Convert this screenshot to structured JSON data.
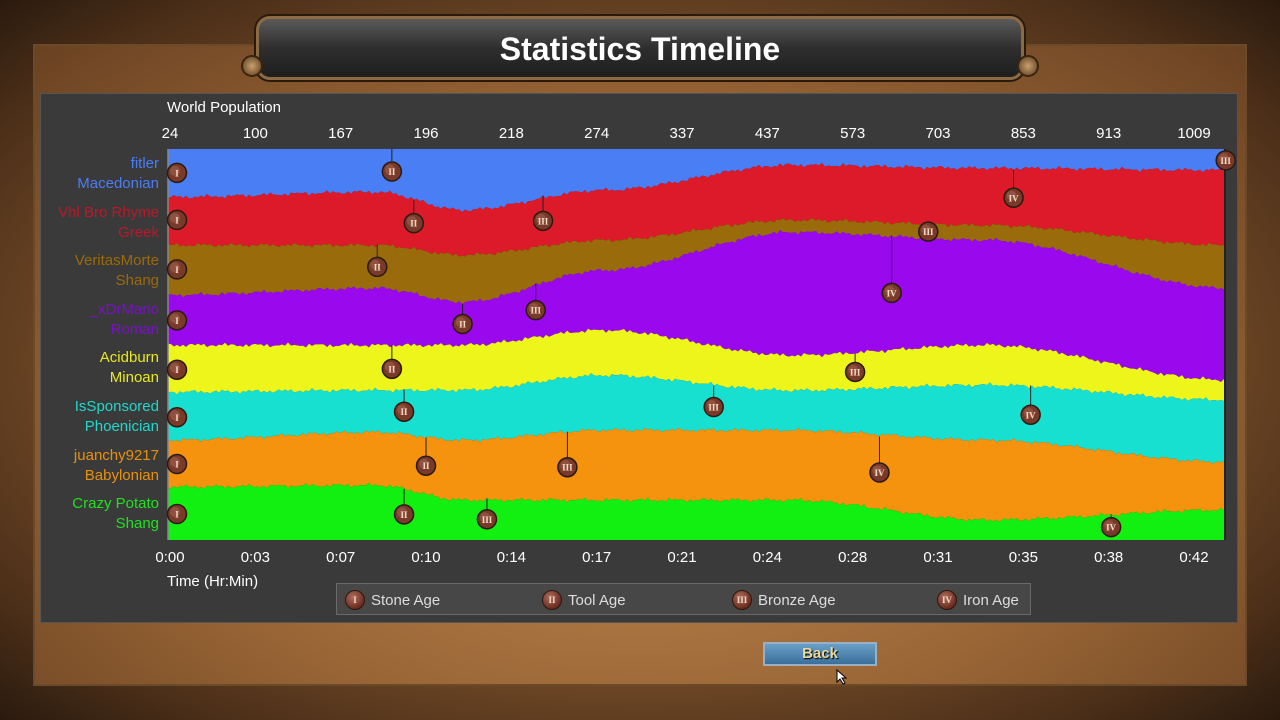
{
  "title": "Statistics Timeline",
  "back_label": "Back",
  "cursor": "arrow-cursor",
  "chart_data": {
    "type": "area",
    "subtype": "stacked-percentage-stream",
    "top_axis_label": "World Population",
    "top_ticks": [
      "24",
      "100",
      "167",
      "196",
      "218",
      "274",
      "337",
      "437",
      "573",
      "703",
      "853",
      "913",
      "1009"
    ],
    "xlabel": "Time (Hr:Min)",
    "x_ticks": [
      "0:00",
      "0:03",
      "0:07",
      "0:10",
      "0:14",
      "0:17",
      "0:21",
      "0:24",
      "0:28",
      "0:31",
      "0:35",
      "0:38",
      "0:42"
    ],
    "x_tick_minutes": [
      0,
      3.5,
      7,
      10.5,
      14,
      17.5,
      21,
      24.5,
      28,
      31.5,
      35,
      38.5,
      42
    ],
    "xlim_minutes": [
      0,
      43.3
    ],
    "sample_minutes": [
      0,
      8.5,
      12,
      17.8,
      25.5,
      33.5,
      43.3
    ],
    "series": [
      {
        "name": "fitler",
        "civ": "Macedonian",
        "color": "#4a7ef5",
        "text_color": "#4a7ef5",
        "share_pct": [
          12.3,
          11,
          15.6,
          10.5,
          4.1,
          4.9,
          5.4
        ],
        "ages": [
          {
            "age": 1,
            "t": 0
          },
          {
            "age": 2,
            "t": 9.1
          },
          {
            "age": 3,
            "t": 43.3
          }
        ]
      },
      {
        "name": "Vhl Bro Rhyme",
        "civ": "Greek",
        "color": "#dc1a2a",
        "text_color": "#c0162a",
        "share_pct": [
          12.3,
          13.6,
          11.5,
          12.8,
          14.1,
          14.6,
          19.2
        ],
        "ages": [
          {
            "age": 1,
            "t": 0
          },
          {
            "age": 2,
            "t": 10.0
          },
          {
            "age": 3,
            "t": 15.3
          },
          {
            "age": 4,
            "t": 34.6
          }
        ]
      },
      {
        "name": "VeritasMorte",
        "civ": "Shang",
        "color": "#9a6b0a",
        "text_color": "#9a6b0a",
        "share_pct": [
          12.8,
          11,
          12,
          7.7,
          3.1,
          3.8,
          11
        ],
        "ages": [
          {
            "age": 1,
            "t": 0
          },
          {
            "age": 2,
            "t": 8.5
          },
          {
            "age": 3,
            "t": 31.1
          }
        ]
      },
      {
        "name": "_xDrMario",
        "civ": "Roman",
        "color": "#9a08ee",
        "text_color": "#7a10c8",
        "share_pct": [
          12.8,
          14.6,
          11,
          15.3,
          31.5,
          26.9,
          23.5
        ],
        "ages": [
          {
            "age": 1,
            "t": 0
          },
          {
            "age": 2,
            "t": 12.0
          },
          {
            "age": 3,
            "t": 15.0
          },
          {
            "age": 4,
            "t": 29.6
          }
        ]
      },
      {
        "name": "Acidburn",
        "civ": "Minoan",
        "color": "#eef51a",
        "text_color": "#e8ea20",
        "share_pct": [
          12,
          11.5,
          11.5,
          11.5,
          9,
          10.2,
          5.1
        ],
        "ages": [
          {
            "age": 1,
            "t": 0
          },
          {
            "age": 2,
            "t": 9.1
          },
          {
            "age": 3,
            "t": 28.1
          }
        ]
      },
      {
        "name": "IsSponsored",
        "civ": "Phoenician",
        "color": "#18e0d0",
        "text_color": "#20d8cc",
        "share_pct": [
          12.3,
          10.7,
          12.8,
          14,
          10.2,
          14.1,
          15.9
        ],
        "ages": [
          {
            "age": 1,
            "t": 0
          },
          {
            "age": 2,
            "t": 9.6
          },
          {
            "age": 3,
            "t": 22.3
          },
          {
            "age": 4,
            "t": 35.3
          }
        ]
      },
      {
        "name": "juanchy9217",
        "civ": "Babylonian",
        "color": "#f5920e",
        "text_color": "#e8900e",
        "share_pct": [
          12,
          13.6,
          15.3,
          17.9,
          17.9,
          20.5,
          12.3
        ],
        "ages": [
          {
            "age": 1,
            "t": 0
          },
          {
            "age": 2,
            "t": 10.5
          },
          {
            "age": 3,
            "t": 16.3
          },
          {
            "age": 4,
            "t": 29.1
          }
        ]
      },
      {
        "name": "Crazy Potato",
        "civ": "Shang",
        "color": "#12f012",
        "text_color": "#20e020",
        "share_pct": [
          13.6,
          14,
          10.2,
          10.2,
          10.2,
          5.1,
          7.7
        ],
        "ages": [
          {
            "age": 1,
            "t": 0
          },
          {
            "age": 2,
            "t": 9.6
          },
          {
            "age": 3,
            "t": 13.0
          },
          {
            "age": 4,
            "t": 38.6
          }
        ]
      }
    ],
    "legend": [
      {
        "numeral": "I",
        "label": "Stone Age"
      },
      {
        "numeral": "II",
        "label": "Tool Age"
      },
      {
        "numeral": "III",
        "label": "Bronze Age"
      },
      {
        "numeral": "IV",
        "label": "Iron Age"
      }
    ],
    "age_numerals": [
      "I",
      "II",
      "III",
      "IV"
    ]
  }
}
